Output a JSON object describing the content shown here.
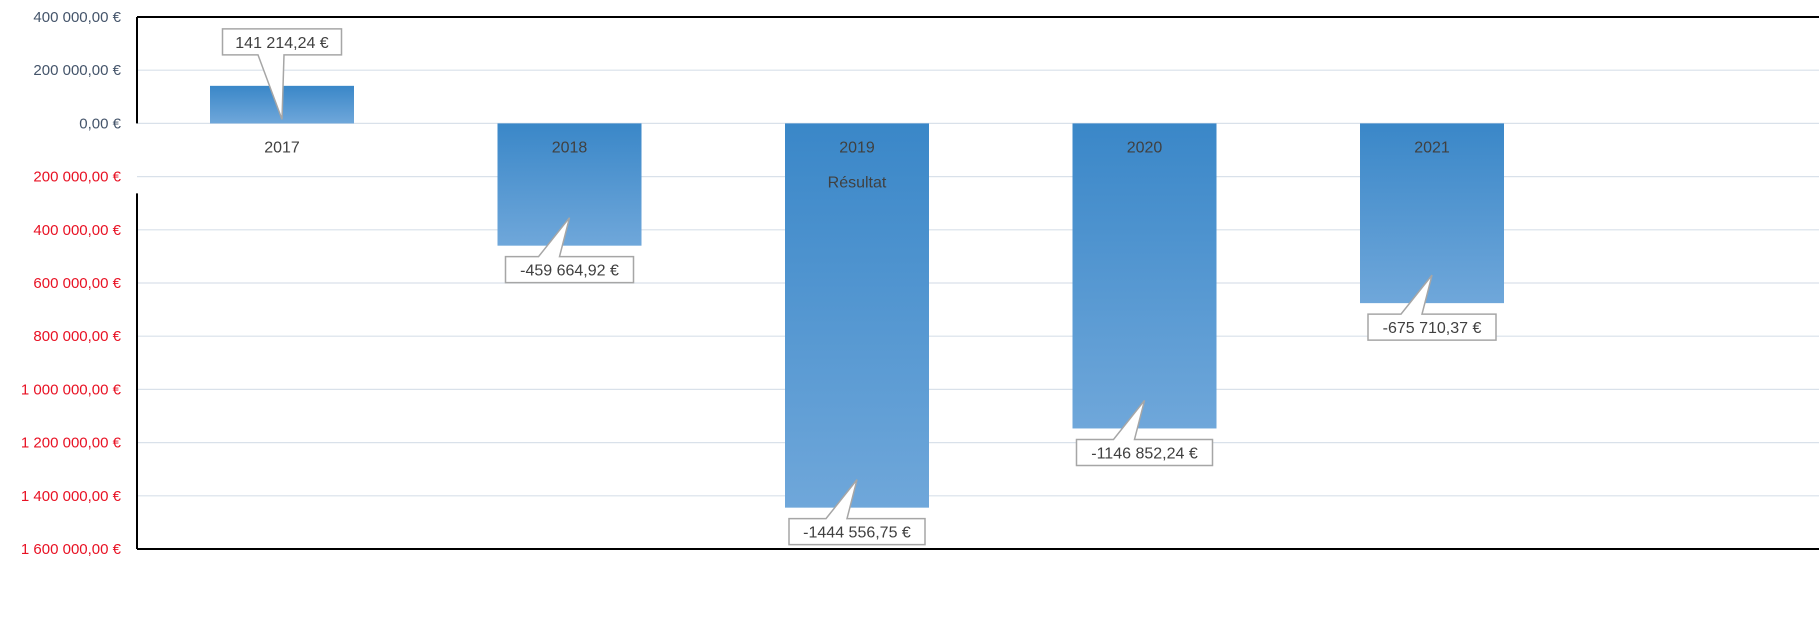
{
  "chart_data": {
    "type": "bar",
    "categories": [
      "2017",
      "2018",
      "2019",
      "2020",
      "2021"
    ],
    "series": [
      {
        "name": "Résultat",
        "values": [
          141214.24,
          -459664.92,
          -1444556.75,
          -1146852.24,
          -675710.37
        ]
      }
    ],
    "data_labels": [
      "141 214,24 €",
      "-459 664,92 €",
      "-1444 556,75 €",
      "-1146 852,24 €",
      "-675 710,37 €"
    ],
    "ylim": [
      -1600000,
      400000
    ],
    "y_ticks": [
      {
        "value": 400000,
        "label": "400 000,00 €"
      },
      {
        "value": 200000,
        "label": "200 000,00 €"
      },
      {
        "value": 0,
        "label": "0,00 €"
      },
      {
        "value": -200000,
        "label": "200 000,00 €"
      },
      {
        "value": -400000,
        "label": "400 000,00 €"
      },
      {
        "value": -600000,
        "label": "600 000,00 €"
      },
      {
        "value": -800000,
        "label": "800 000,00 €"
      },
      {
        "value": -1000000,
        "label": "1 000 000,00 €"
      },
      {
        "value": -1200000,
        "label": "1 200 000,00 €"
      },
      {
        "value": -1400000,
        "label": "1 400 000,00 €"
      },
      {
        "value": -1600000,
        "label": "1 600 000,00 €"
      }
    ],
    "grid": true,
    "colors": {
      "bar_top": "#3a87c8",
      "bar_bottom": "#6fa7da",
      "positive_tick": "#44546a",
      "negative_tick": "#e81123",
      "gridline": "#d9e1ea"
    }
  }
}
